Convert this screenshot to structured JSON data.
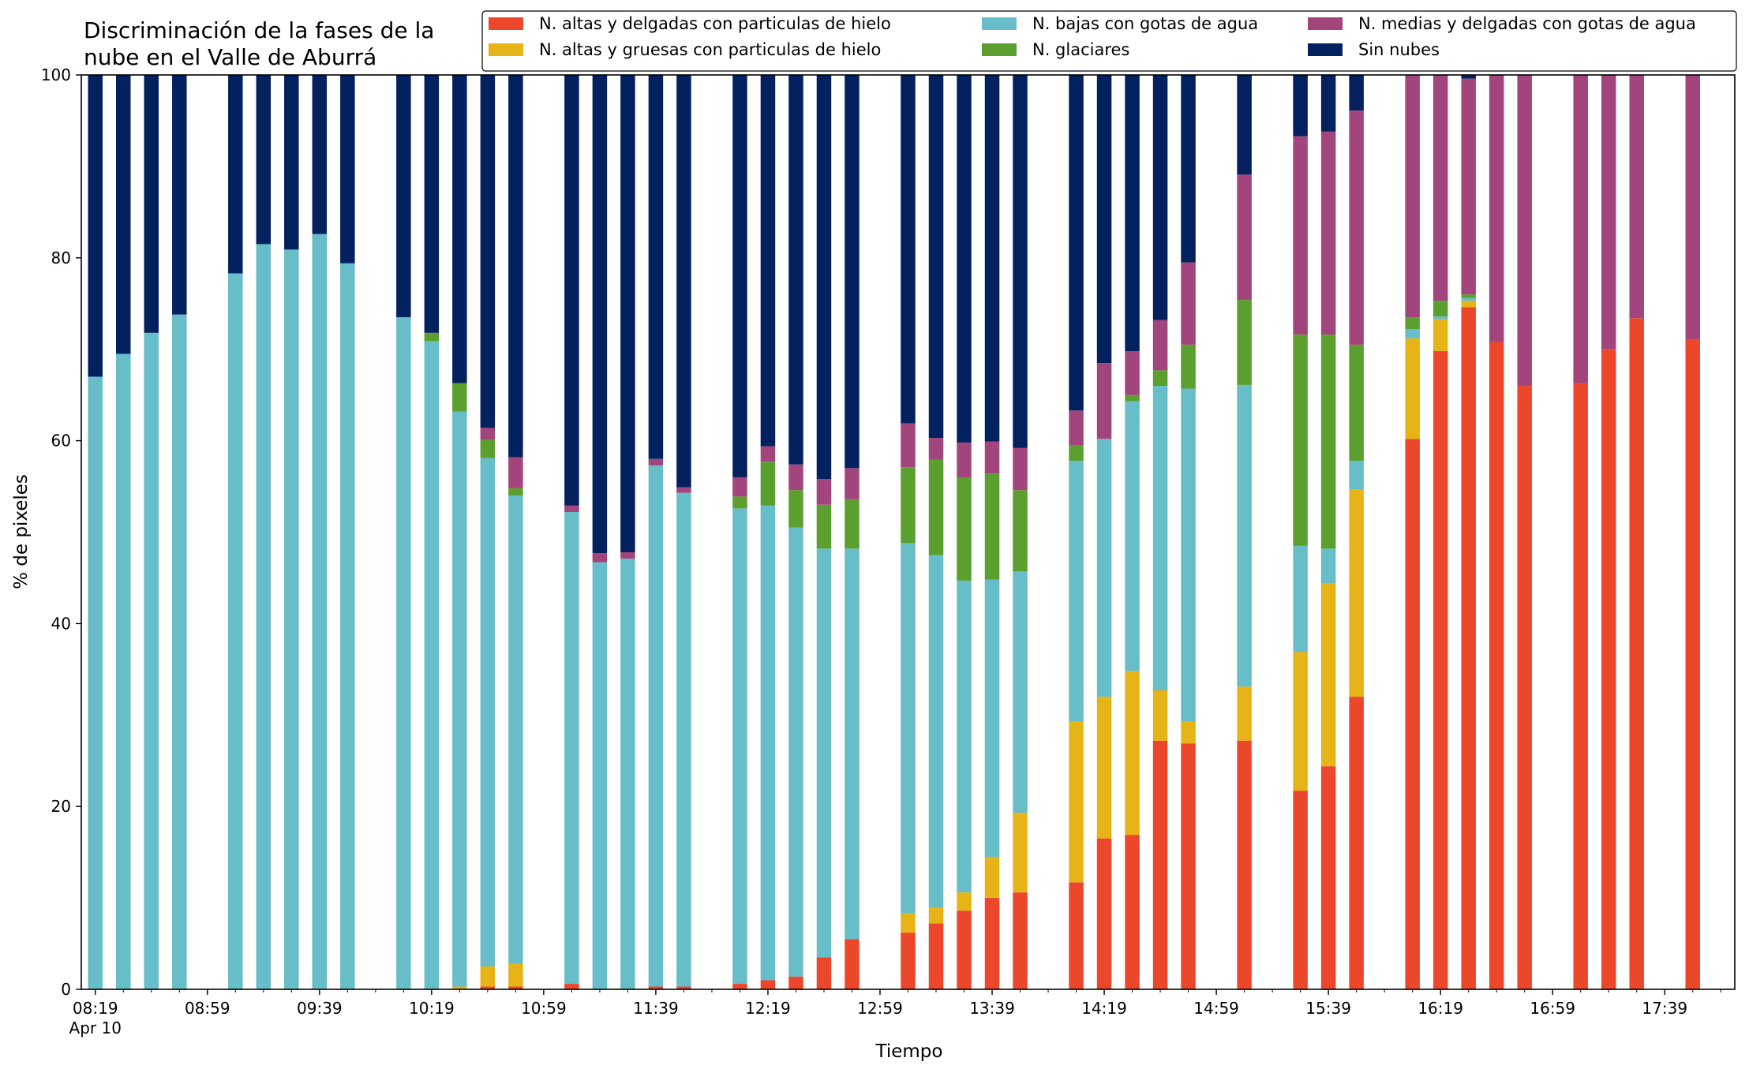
{
  "chart_data": {
    "type": "bar",
    "stacked": true,
    "title": "Discriminación de la fases de la\nnube en el Valle de Aburrá",
    "xlabel": "Tiempo",
    "ylabel": "% de pixeles",
    "ylim": [
      0,
      100
    ],
    "yticks": [
      0,
      20,
      40,
      60,
      80,
      100
    ],
    "xlim": [
      "08:14",
      "18:04"
    ],
    "date_label": "Apr 10",
    "xtick_labels": [
      "08:19",
      "08:59",
      "09:39",
      "10:19",
      "10:59",
      "11:39",
      "12:19",
      "12:59",
      "13:39",
      "14:19",
      "14:59",
      "15:39",
      "16:19",
      "16:59",
      "17:39"
    ],
    "minor_tick_step_minutes": 10,
    "grid": false,
    "legend_position": "top-right",
    "legend_columns": 3,
    "series_order_bottom_to_top": [
      "altas_delgadas",
      "altas_gruesas",
      "bajas",
      "glaciares",
      "medias",
      "sin_nubes"
    ],
    "legend_order": [
      "altas_delgadas",
      "altas_gruesas",
      "bajas",
      "glaciares",
      "medias",
      "sin_nubes"
    ],
    "series": [
      {
        "key": "altas_delgadas",
        "name": "N. altas y delgadas con particulas de hielo",
        "color": "#ec472b"
      },
      {
        "key": "altas_gruesas",
        "name": "N. altas y gruesas con particulas de hielo",
        "color": "#e6b417"
      },
      {
        "key": "bajas",
        "name": "N. bajas con gotas de agua",
        "color": "#67bdc8"
      },
      {
        "key": "glaciares",
        "name": "N. glaciares",
        "color": "#5b9f2e"
      },
      {
        "key": "medias",
        "name": "N. medias y delgadas con gotas de agua",
        "color": "#a2457d"
      },
      {
        "key": "sin_nubes",
        "name": "Sin nubes",
        "color": "#03215f"
      }
    ],
    "bars": [
      {
        "time": "08:19",
        "values": [
          0,
          0,
          67.0,
          0,
          0,
          33.0
        ]
      },
      {
        "time": "08:29",
        "values": [
          0,
          0,
          69.5,
          0,
          0,
          30.5
        ]
      },
      {
        "time": "08:39",
        "values": [
          0,
          0,
          71.8,
          0,
          0,
          28.2
        ]
      },
      {
        "time": "08:49",
        "values": [
          0,
          0,
          73.8,
          0,
          0,
          26.2
        ]
      },
      {
        "time": "09:09",
        "values": [
          0,
          0,
          78.3,
          0,
          0,
          21.7
        ]
      },
      {
        "time": "09:19",
        "values": [
          0,
          0,
          81.5,
          0,
          0,
          18.5
        ]
      },
      {
        "time": "09:29",
        "values": [
          0,
          0,
          80.9,
          0,
          0,
          19.1
        ]
      },
      {
        "time": "09:39",
        "values": [
          0,
          0,
          82.6,
          0,
          0,
          17.4
        ]
      },
      {
        "time": "09:49",
        "values": [
          0,
          0,
          79.4,
          0,
          0,
          20.6
        ]
      },
      {
        "time": "10:09",
        "values": [
          0,
          0,
          73.5,
          0,
          0,
          26.5
        ]
      },
      {
        "time": "10:19",
        "values": [
          0,
          0,
          70.9,
          0.9,
          0,
          28.2
        ]
      },
      {
        "time": "10:29",
        "values": [
          0,
          0.3,
          62.9,
          3.1,
          0,
          33.7
        ]
      },
      {
        "time": "10:39",
        "values": [
          0.3,
          2.2,
          55.6,
          2.0,
          1.3,
          38.6
        ]
      },
      {
        "time": "10:49",
        "values": [
          0.3,
          2.5,
          51.2,
          0.8,
          3.4,
          41.8
        ]
      },
      {
        "time": "11:09",
        "values": [
          0.6,
          0,
          51.6,
          0,
          0.7,
          47.1
        ]
      },
      {
        "time": "11:19",
        "values": [
          0,
          0,
          46.7,
          0,
          1.0,
          52.3
        ]
      },
      {
        "time": "11:29",
        "values": [
          0,
          0,
          47.1,
          0,
          0.7,
          52.2
        ]
      },
      {
        "time": "11:39",
        "values": [
          0.3,
          0,
          57.0,
          0,
          0.7,
          42.0
        ]
      },
      {
        "time": "11:49",
        "values": [
          0.3,
          0,
          54.0,
          0,
          0.6,
          45.1
        ]
      },
      {
        "time": "12:09",
        "values": [
          0.6,
          0,
          52.0,
          1.3,
          2.1,
          44.0
        ]
      },
      {
        "time": "12:19",
        "values": [
          1.0,
          0,
          51.9,
          4.8,
          1.7,
          40.6
        ]
      },
      {
        "time": "12:29",
        "values": [
          1.4,
          0,
          49.1,
          4.1,
          2.8,
          42.6
        ]
      },
      {
        "time": "12:39",
        "values": [
          3.5,
          0,
          44.7,
          4.8,
          2.8,
          44.2
        ]
      },
      {
        "time": "12:49",
        "values": [
          5.5,
          0,
          42.7,
          5.4,
          3.4,
          43.0
        ]
      },
      {
        "time": "13:09",
        "values": [
          6.2,
          2.1,
          40.5,
          8.3,
          4.8,
          38.1
        ]
      },
      {
        "time": "13:19",
        "values": [
          7.2,
          1.7,
          38.6,
          10.4,
          2.4,
          39.7
        ]
      },
      {
        "time": "13:29",
        "values": [
          8.6,
          2.0,
          34.1,
          11.3,
          3.8,
          40.2
        ]
      },
      {
        "time": "13:39",
        "values": [
          10.0,
          4.5,
          30.3,
          11.6,
          3.5,
          40.1
        ]
      },
      {
        "time": "13:49",
        "values": [
          10.6,
          8.7,
          26.4,
          8.9,
          4.6,
          40.8
        ]
      },
      {
        "time": "14:09",
        "values": [
          11.7,
          17.6,
          28.5,
          1.7,
          3.8,
          36.7
        ]
      },
      {
        "time": "14:19",
        "values": [
          16.5,
          15.5,
          28.2,
          0,
          8.3,
          31.5
        ]
      },
      {
        "time": "14:29",
        "values": [
          16.9,
          17.9,
          29.5,
          0.7,
          4.8,
          30.2
        ]
      },
      {
        "time": "14:39",
        "values": [
          27.2,
          5.5,
          33.3,
          1.7,
          5.5,
          26.8
        ]
      },
      {
        "time": "14:49",
        "values": [
          26.9,
          2.4,
          36.4,
          4.8,
          9.0,
          20.5
        ]
      },
      {
        "time": "15:09",
        "values": [
          27.2,
          5.9,
          33.0,
          9.3,
          13.7,
          10.9
        ]
      },
      {
        "time": "15:29",
        "values": [
          21.7,
          15.2,
          11.6,
          23.1,
          21.7,
          6.7
        ]
      },
      {
        "time": "15:39",
        "values": [
          24.4,
          20.0,
          3.8,
          23.4,
          22.2,
          6.2
        ]
      },
      {
        "time": "15:49",
        "values": [
          32.0,
          22.7,
          3.1,
          12.7,
          25.6,
          3.9
        ]
      },
      {
        "time": "16:09",
        "values": [
          60.2,
          11.0,
          1.0,
          1.3,
          26.5,
          0
        ]
      },
      {
        "time": "16:19",
        "values": [
          69.8,
          3.5,
          0.3,
          1.7,
          24.7,
          0
        ]
      },
      {
        "time": "16:29",
        "values": [
          74.6,
          0.7,
          0.3,
          0.4,
          23.6,
          0.4
        ]
      },
      {
        "time": "16:39",
        "values": [
          70.8,
          0,
          0,
          0,
          29.2,
          0
        ]
      },
      {
        "time": "16:49",
        "values": [
          66.0,
          0,
          0,
          0,
          34.0,
          0
        ]
      },
      {
        "time": "17:09",
        "values": [
          66.3,
          0,
          0,
          0,
          33.7,
          0
        ]
      },
      {
        "time": "17:19",
        "values": [
          70.0,
          0,
          0,
          0,
          30.0,
          0
        ]
      },
      {
        "time": "17:29",
        "values": [
          73.4,
          0,
          0,
          0,
          26.6,
          0
        ]
      },
      {
        "time": "17:49",
        "values": [
          71.1,
          0,
          0,
          0,
          28.9,
          0
        ]
      }
    ]
  }
}
